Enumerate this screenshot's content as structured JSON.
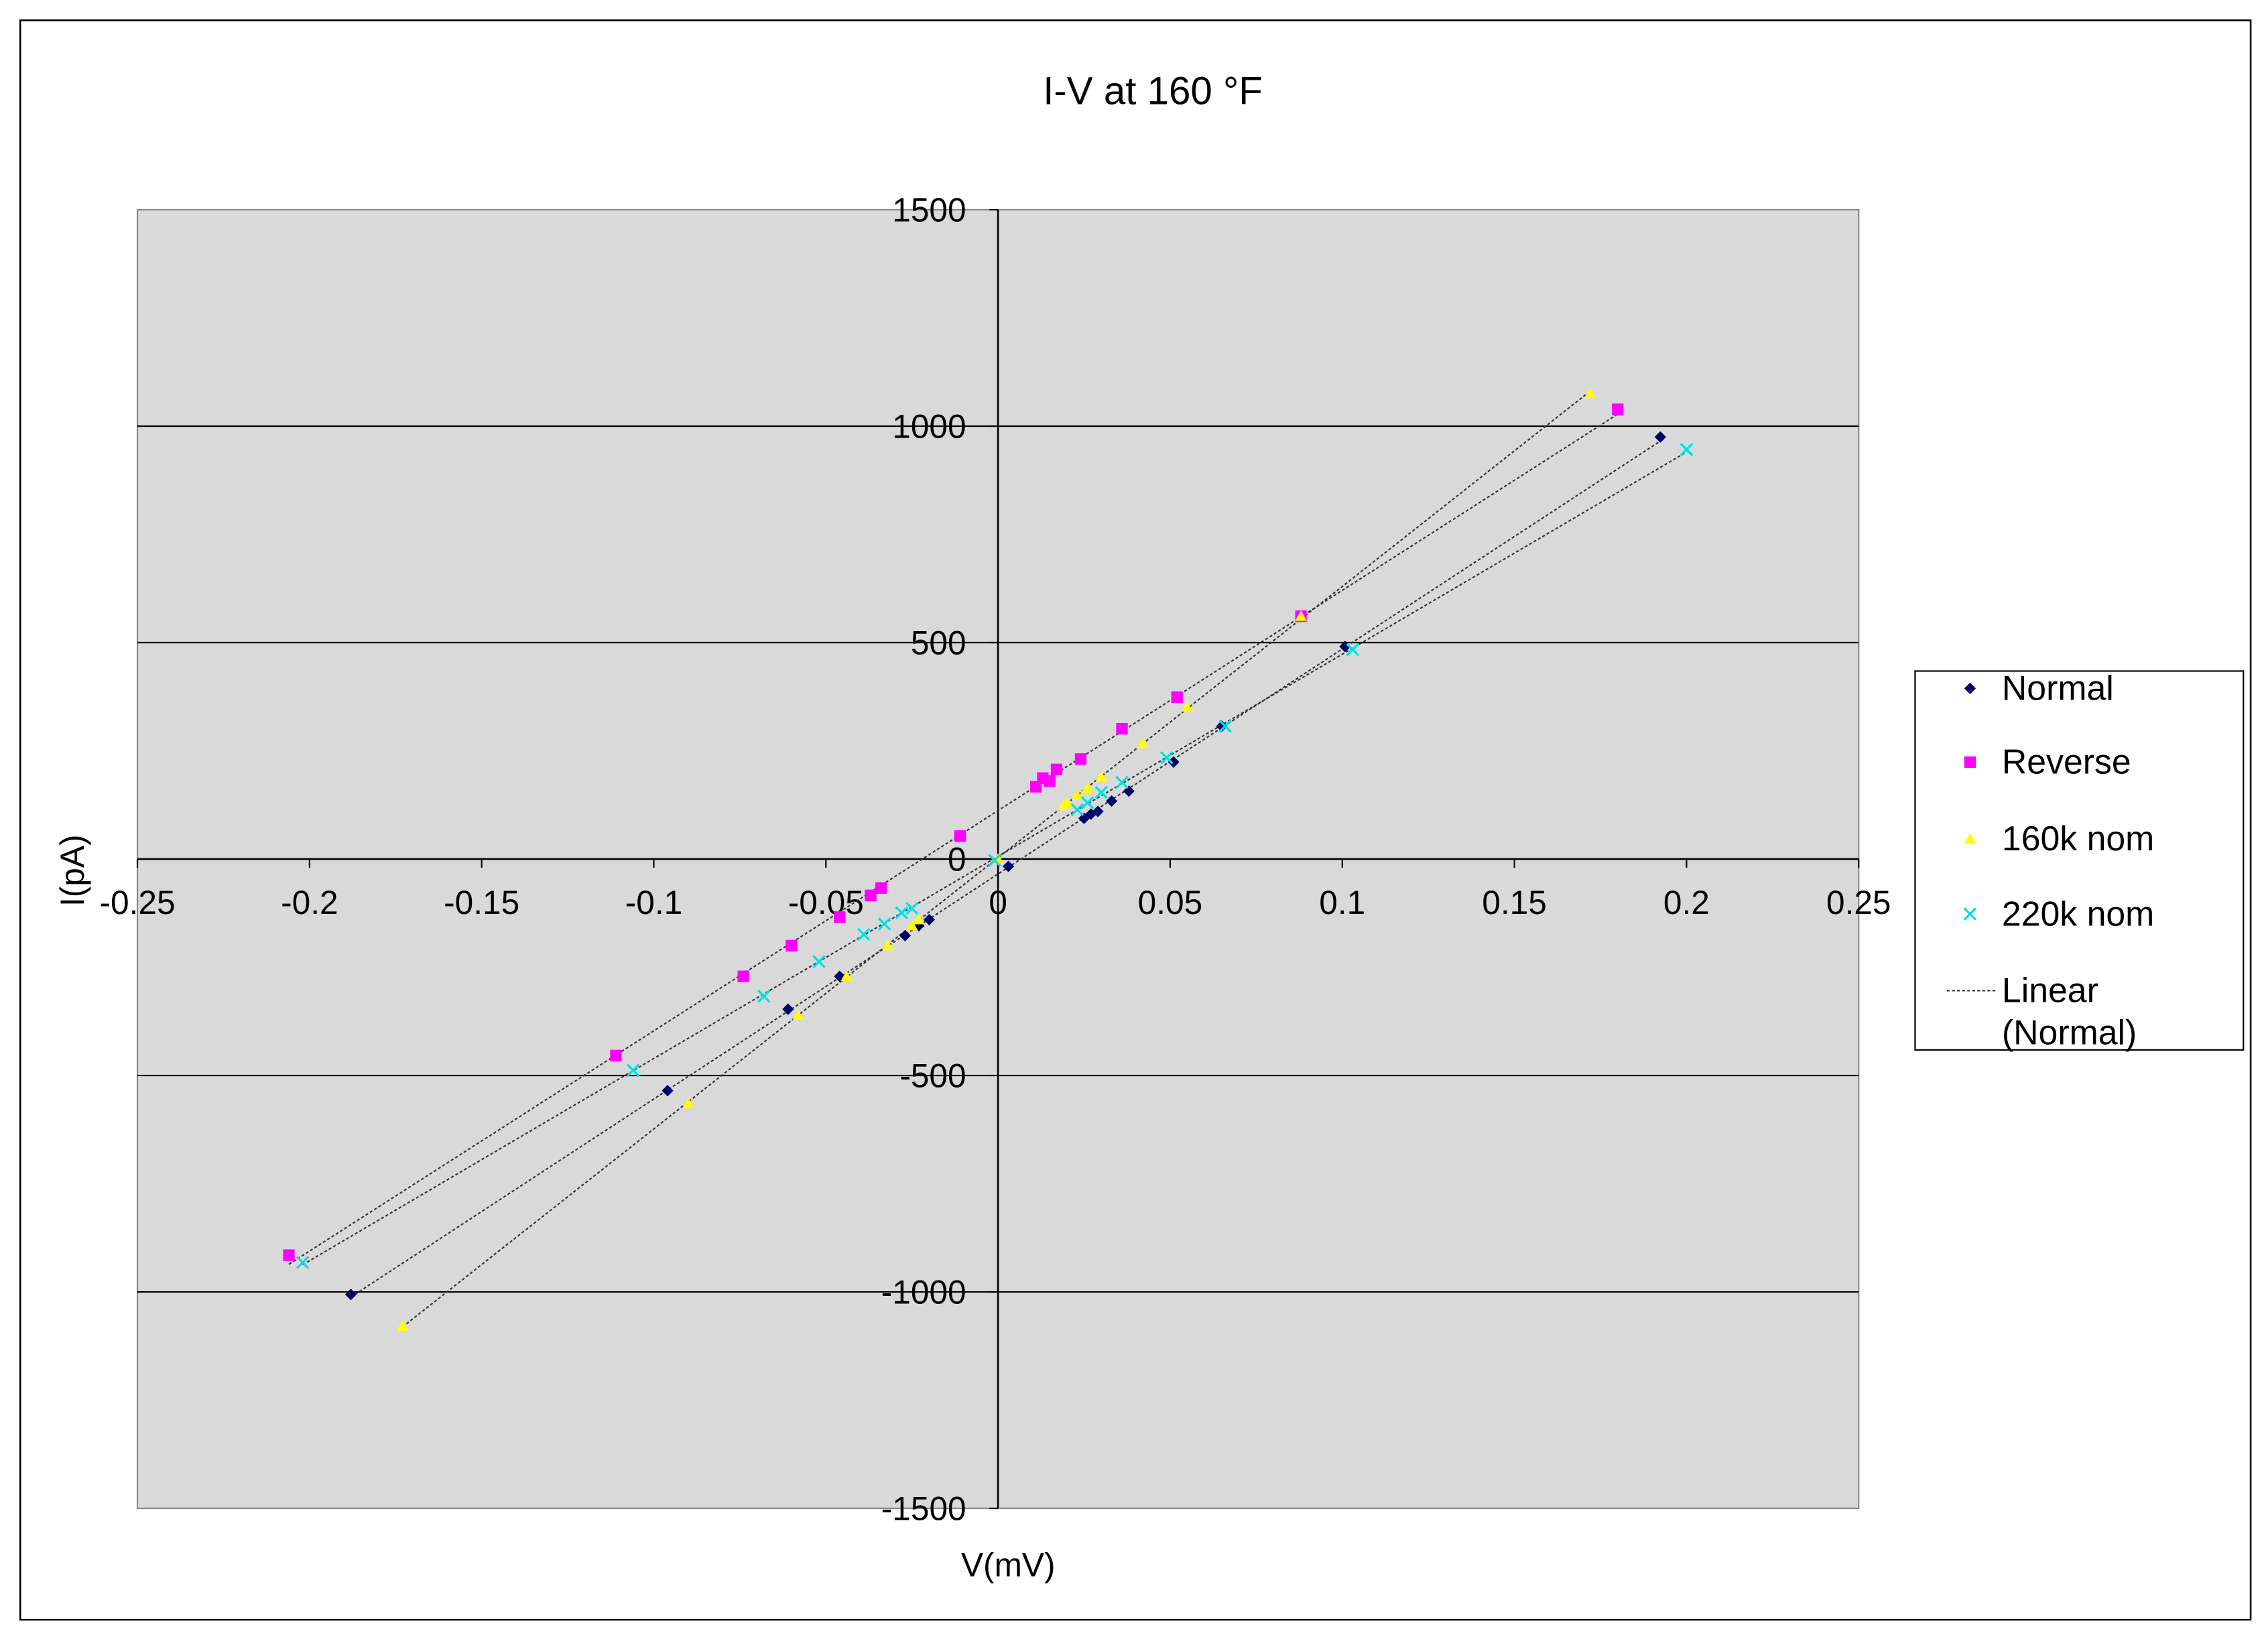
{
  "chart_data": {
    "type": "scatter",
    "title": "I-V at 160 °F",
    "x_label": "V(mV)",
    "y_label": "I(pA)",
    "xlim": [
      -0.25,
      0.25
    ],
    "xticks": [
      -0.25,
      -0.2,
      -0.15,
      -0.1,
      -0.05,
      0,
      0.05,
      0.1,
      0.15,
      0.2,
      0.25
    ],
    "ylim": [
      -1500,
      1500
    ],
    "yticks": [
      -1500,
      -1000,
      -500,
      0,
      500,
      1000,
      1500
    ],
    "grid": true,
    "trendline": "linear",
    "trendline_label": "Linear (Normal)",
    "legend": "right",
    "series": [
      {
        "name": "Normal",
        "color": "#000066",
        "marker": "diamond",
        "x": [
          0.1924,
          0.1008,
          0.065,
          0.051,
          0.038,
          0.033,
          0.029,
          0.027,
          0.025,
          0.003,
          -0.02,
          -0.023,
          -0.027,
          -0.046,
          -0.061,
          -0.096,
          -0.188
        ],
        "values": [
          975,
          491,
          307,
          224,
          157,
          134,
          110,
          104,
          94,
          -17,
          -140,
          -154,
          -177,
          -271,
          -347,
          -535,
          -1006
        ]
      },
      {
        "name": "Reverse",
        "color": "#ff00ff",
        "marker": "square",
        "x": [
          0.18,
          0.088,
          0.052,
          0.036,
          0.024,
          0.017,
          0.015,
          0.013,
          0.011,
          -0.011,
          -0.034,
          -0.037,
          -0.046,
          -0.06,
          -0.074,
          -0.111,
          -0.206
        ],
        "values": [
          1039,
          561,
          374,
          301,
          231,
          207,
          180,
          187,
          167,
          53,
          -67,
          -84,
          -134,
          -200,
          -271,
          -454,
          -915
        ]
      },
      {
        "name": "160k nom",
        "color": "#ffff00",
        "marker": "triangle",
        "x": [
          0.172,
          0.088,
          0.055,
          0.042,
          0.03,
          0.026,
          0.023,
          0.02,
          0.019,
          0,
          -0.023,
          -0.025,
          -0.032,
          -0.044,
          -0.058,
          -0.09,
          -0.173
        ],
        "values": [
          1076,
          561,
          351,
          267,
          190,
          164,
          147,
          130,
          124,
          0,
          -140,
          -154,
          -200,
          -271,
          -361,
          -565,
          -1079
        ]
      },
      {
        "name": "220k nom",
        "color": "#00e0e0",
        "marker": "x",
        "x": [
          0.2,
          0.103,
          0.066,
          0.049,
          0.036,
          0.03,
          0.026,
          0.023,
          -0.001,
          -0.025,
          -0.028,
          -0.033,
          -0.039,
          -0.052,
          -0.068,
          -0.106,
          -0.202
        ],
        "values": [
          946,
          484,
          307,
          234,
          177,
          154,
          130,
          114,
          -3,
          -114,
          -124,
          -150,
          -174,
          -237,
          -317,
          -488,
          -932
        ]
      }
    ]
  }
}
